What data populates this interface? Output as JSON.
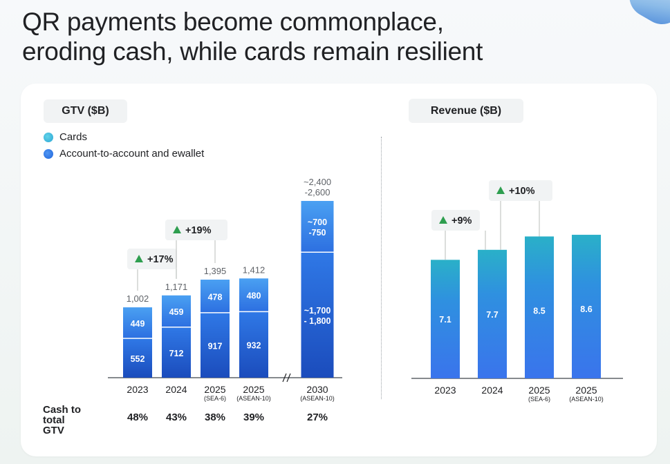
{
  "title": {
    "line1": "QR payments become commonplace,",
    "line2": "eroding cash, while cards remain resilient"
  },
  "gtv_panel": {
    "label": "GTV ($B)",
    "legend": [
      {
        "name": "Cards",
        "color": "#4cc3e0"
      },
      {
        "name": "Account-to-account and ewallet",
        "color": "#2f7ae5"
      }
    ],
    "cash_label_lines": [
      "Cash to",
      "total",
      "GTV"
    ]
  },
  "revenue_panel": {
    "label": "Revenue ($B)"
  },
  "chart_data": [
    {
      "type": "bar",
      "stacked": true,
      "title": "GTV ($B)",
      "categories": [
        {
          "year": "2023",
          "sub": ""
        },
        {
          "year": "2024",
          "sub": ""
        },
        {
          "year": "2025",
          "sub": "(SEA-6)"
        },
        {
          "year": "2025",
          "sub": "(ASEAN-10)"
        },
        {
          "year": "2030",
          "sub": "(ASEAN-10)"
        }
      ],
      "series": [
        {
          "name": "Account-to-account and ewallet",
          "values": [
            552,
            712,
            917,
            932,
            1750
          ],
          "labels": [
            "552",
            "712",
            "917",
            "932",
            "~1,700\n- 1,800"
          ]
        },
        {
          "name": "Cards",
          "values": [
            449,
            459,
            478,
            480,
            725
          ],
          "labels": [
            "449",
            "459",
            "478",
            "480",
            "~700\n-750"
          ]
        }
      ],
      "totals": [
        "1,002",
        "1,171",
        "1,395",
        "1,412",
        "~2,400\n-2,600"
      ],
      "growth_annotations": [
        {
          "between": [
            0,
            1
          ],
          "label": "+17%"
        },
        {
          "between": [
            1,
            2
          ],
          "label": "+19%"
        }
      ],
      "axis_break_before_index": 4,
      "cash_to_total_gtv": [
        "48%",
        "43%",
        "38%",
        "39%",
        "27%"
      ],
      "ylim": [
        0,
        2500
      ]
    },
    {
      "type": "bar",
      "title": "Revenue ($B)",
      "categories": [
        {
          "year": "2023",
          "sub": ""
        },
        {
          "year": "2024",
          "sub": ""
        },
        {
          "year": "2025",
          "sub": "(SEA-6)"
        },
        {
          "year": "2025",
          "sub": "(ASEAN-10)"
        }
      ],
      "values": [
        7.1,
        7.7,
        8.5,
        8.6
      ],
      "growth_annotations": [
        {
          "between": [
            0,
            1
          ],
          "label": "+9%"
        },
        {
          "between": [
            1,
            2
          ],
          "label": "+10%"
        }
      ],
      "ylim": [
        0,
        9.5
      ]
    }
  ],
  "colors": {
    "a2a_top": "#2f7ae5",
    "a2a_bottom": "#1d4fbd",
    "cards_top": "#4b9bf0",
    "cards_bottom": "#2f6fe0",
    "rev_top": "#2fb6c9",
    "rev_bottom": "#3476ea",
    "growth_arrow": "#2e9e4f",
    "tick_text": "#202124",
    "total_text": "#5f6368"
  }
}
